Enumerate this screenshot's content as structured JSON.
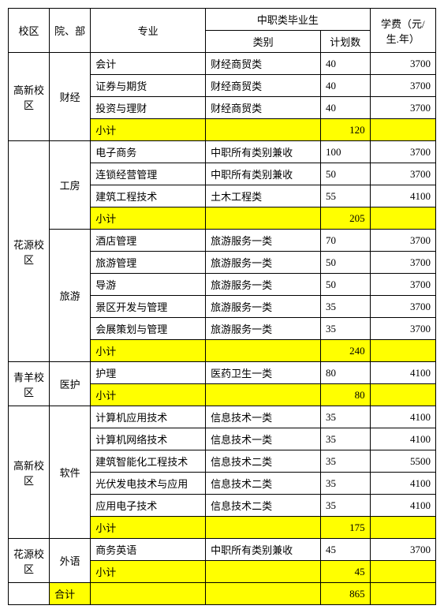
{
  "headers": {
    "campus": "校区",
    "dept": "院、部",
    "major": "专业",
    "voc_group": "中职类毕业生",
    "category": "类别",
    "plan": "计划数",
    "fee": "学费（元/生.年）"
  },
  "labels": {
    "subtotal": "小计",
    "total": "合计"
  },
  "groups": [
    {
      "campus": "高新校区",
      "depts": [
        {
          "name": "财经",
          "rows": [
            {
              "major": "会计",
              "category": "财经商贸类",
              "plan": 40,
              "fee": 3700
            },
            {
              "major": "证券与期货",
              "category": "财经商贸类",
              "plan": 40,
              "fee": 3700
            },
            {
              "major": "投资与理财",
              "category": "财经商贸类",
              "plan": 40,
              "fee": 3700
            }
          ],
          "subtotal": 120
        }
      ]
    },
    {
      "campus": "花源校区",
      "depts": [
        {
          "name": "工房",
          "rows": [
            {
              "major": "电子商务",
              "category": "中职所有类别兼收",
              "plan": 100,
              "fee": 3700
            },
            {
              "major": "连锁经营管理",
              "category": "中职所有类别兼收",
              "plan": 50,
              "fee": 3700
            },
            {
              "major": "建筑工程技术",
              "category": "土木工程类",
              "plan": 55,
              "fee": 4100
            }
          ],
          "subtotal": 205
        },
        {
          "name": "旅游",
          "rows": [
            {
              "major": "酒店管理",
              "category": "旅游服务一类",
              "plan": 70,
              "fee": 3700
            },
            {
              "major": "旅游管理",
              "category": "旅游服务一类",
              "plan": 50,
              "fee": 3700
            },
            {
              "major": "导游",
              "category": "旅游服务一类",
              "plan": 50,
              "fee": 3700
            },
            {
              "major": "景区开发与管理",
              "category": "旅游服务一类",
              "plan": 35,
              "fee": 3700
            },
            {
              "major": "会展策划与管理",
              "category": "旅游服务一类",
              "plan": 35,
              "fee": 3700
            }
          ],
          "subtotal": 240
        }
      ]
    },
    {
      "campus": "青羊校区",
      "depts": [
        {
          "name": "医护",
          "rows": [
            {
              "major": "护理",
              "category": "医药卫生一类",
              "plan": 80,
              "fee": 4100
            }
          ],
          "subtotal": 80
        }
      ]
    },
    {
      "campus": "高新校区",
      "depts": [
        {
          "name": "软件",
          "rows": [
            {
              "major": "计算机应用技术",
              "category": "信息技术一类",
              "plan": 35,
              "fee": 4100
            },
            {
              "major": "计算机网络技术",
              "category": "信息技术一类",
              "plan": 35,
              "fee": 4100
            },
            {
              "major": "建筑智能化工程技术",
              "category": "信息技术二类",
              "plan": 35,
              "fee": 5500
            },
            {
              "major": "光伏发电技术与应用",
              "category": "信息技术二类",
              "plan": 35,
              "fee": 4100
            },
            {
              "major": "应用电子技术",
              "category": "信息技术二类",
              "plan": 35,
              "fee": 4100
            }
          ],
          "subtotal": 175
        }
      ]
    },
    {
      "campus": "花源校区",
      "depts": [
        {
          "name": "外语",
          "rows": [
            {
              "major": "商务英语",
              "category": "中职所有类别兼收",
              "plan": 45,
              "fee": 3700
            }
          ],
          "subtotal": 45
        }
      ]
    }
  ],
  "grand_total": 865,
  "style": {
    "highlight_bg": "#ffff00",
    "border_color": "#000000",
    "font_size": 13
  }
}
